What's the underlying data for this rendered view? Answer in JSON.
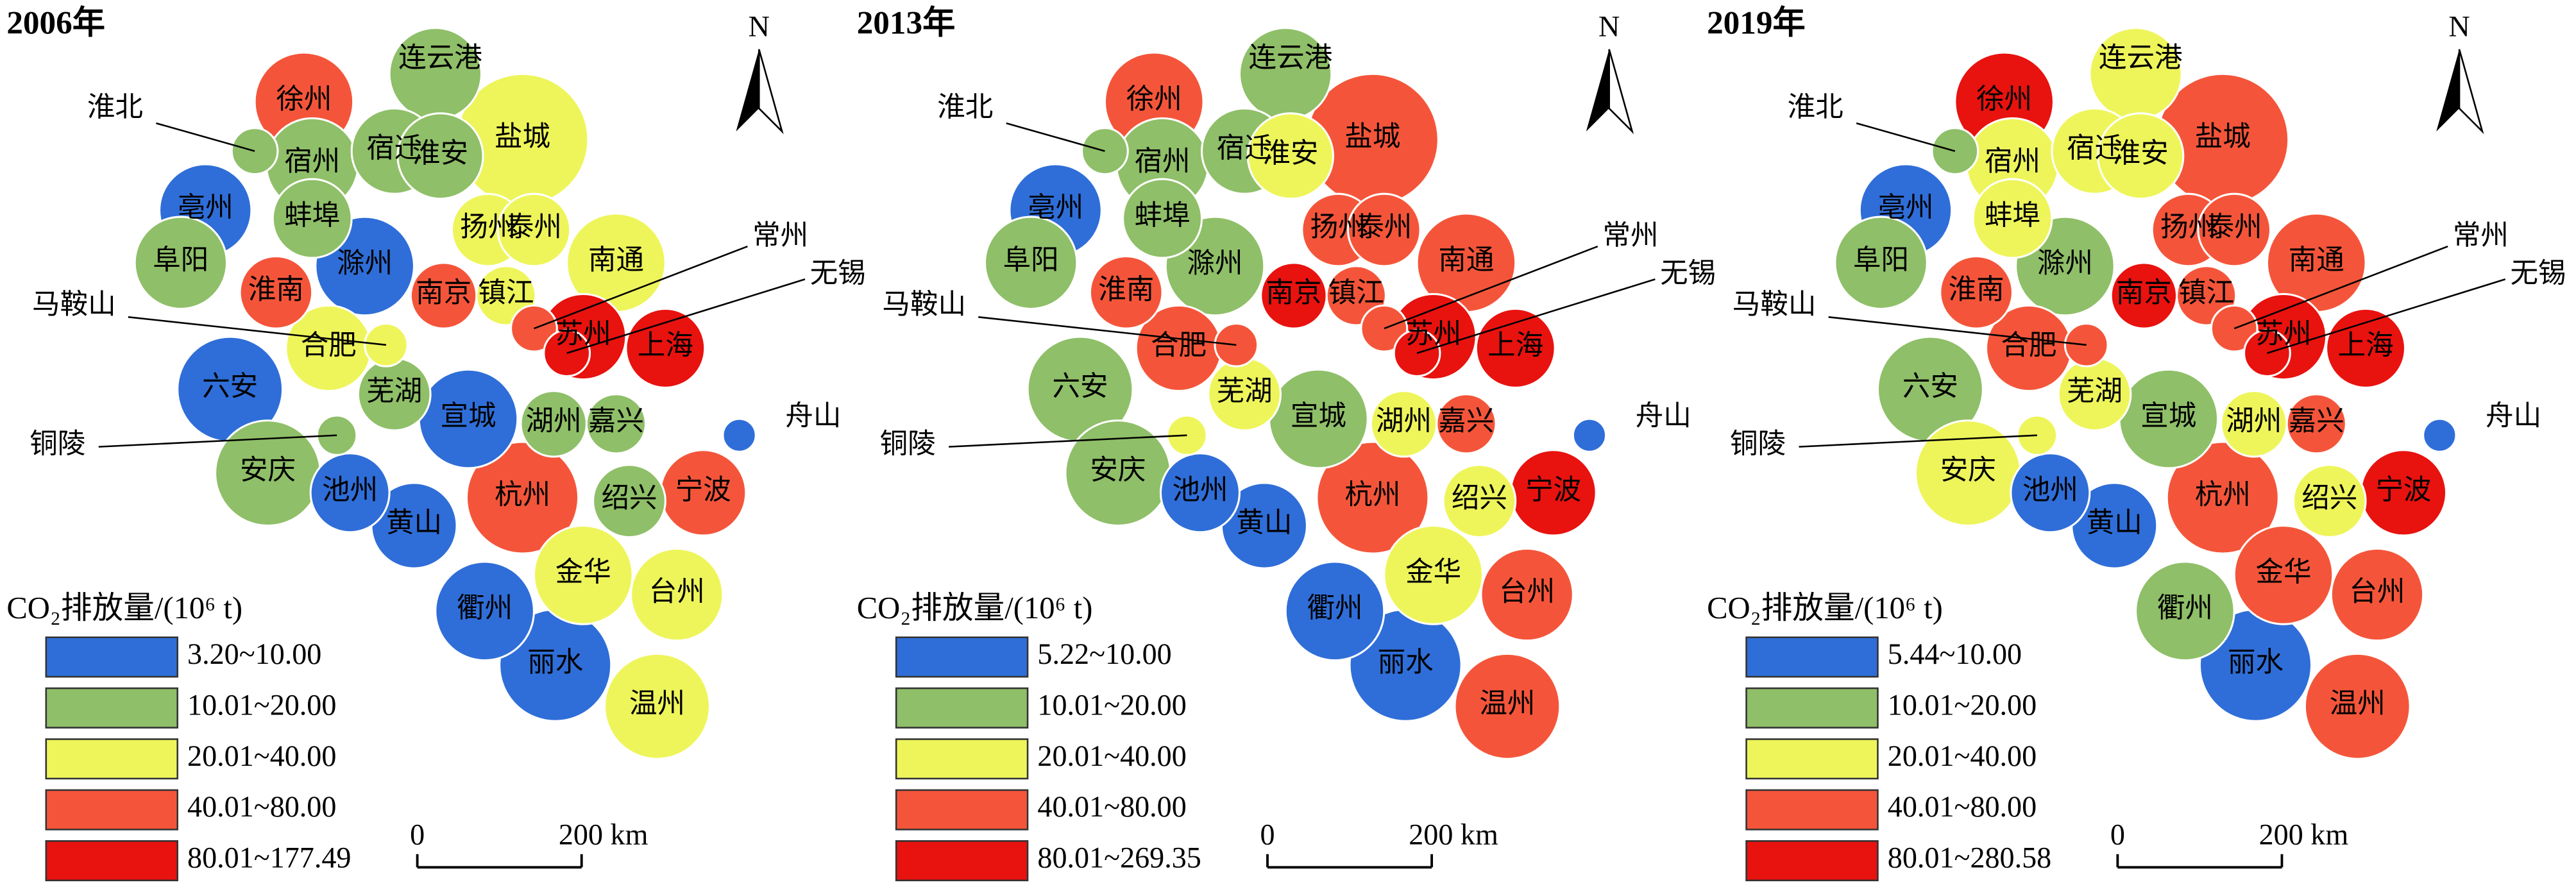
{
  "cities": [
    "徐州",
    "连云港",
    "宿州",
    "宿迁",
    "淮安",
    "盐城",
    "淮北",
    "亳州",
    "蚌埠",
    "扬州",
    "泰州",
    "阜阳",
    "淮南",
    "滁州",
    "南京",
    "镇江",
    "南通",
    "常州",
    "无锡",
    "苏州",
    "上海",
    "马鞍山",
    "合肥",
    "芜湖",
    "六安",
    "宣城",
    "湖州",
    "嘉兴",
    "舟山",
    "铜陵",
    "安庆",
    "池州",
    "黄山",
    "杭州",
    "绍兴",
    "宁波",
    "金华",
    "台州",
    "衢州",
    "丽水",
    "温州"
  ],
  "class_colors": [
    "#2f6ed8",
    "#8fbf68",
    "#eef55a",
    "#f4553a",
    "#e8120f"
  ],
  "north": "N",
  "scale": [
    "0",
    "200 km"
  ],
  "panels": [
    {
      "title": "2006年",
      "legend_title": "CO₂排放量/(10⁶ t)",
      "legend": [
        "3.20~10.00",
        "10.01~20.00",
        "20.01~40.00",
        "40.01~80.00",
        "80.01~177.49"
      ],
      "classes": [
        3,
        1,
        1,
        1,
        1,
        2,
        1,
        0,
        1,
        2,
        2,
        1,
        3,
        0,
        3,
        2,
        2,
        3,
        4,
        4,
        4,
        2,
        2,
        1,
        0,
        0,
        1,
        1,
        0,
        1,
        1,
        0,
        0,
        3,
        1,
        3,
        2,
        2,
        0,
        0,
        2
      ]
    },
    {
      "title": "2013年",
      "legend_title": "CO₂排放量/(10⁶ t)",
      "legend": [
        "5.22~10.00",
        "10.01~20.00",
        "20.01~40.00",
        "40.01~80.00",
        "80.01~269.35"
      ],
      "classes": [
        3,
        1,
        1,
        1,
        2,
        3,
        1,
        0,
        1,
        3,
        3,
        1,
        3,
        1,
        4,
        3,
        3,
        3,
        4,
        4,
        4,
        3,
        3,
        2,
        1,
        1,
        2,
        3,
        0,
        2,
        1,
        0,
        0,
        3,
        2,
        4,
        2,
        3,
        0,
        0,
        3
      ]
    },
    {
      "title": "2019年",
      "legend_title": "CO₂排放量/(10⁶ t)",
      "legend": [
        "5.44~10.00",
        "10.01~20.00",
        "20.01~40.00",
        "40.01~80.00",
        "80.01~280.58"
      ],
      "classes": [
        4,
        2,
        2,
        2,
        2,
        3,
        1,
        0,
        2,
        3,
        3,
        1,
        3,
        1,
        4,
        3,
        3,
        3,
        4,
        4,
        4,
        3,
        3,
        2,
        1,
        1,
        2,
        3,
        0,
        2,
        2,
        0,
        0,
        3,
        2,
        4,
        3,
        3,
        1,
        0,
        3
      ]
    }
  ]
}
